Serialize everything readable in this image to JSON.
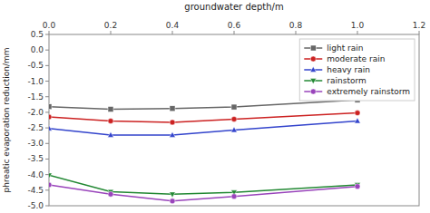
{
  "chart_data": {
    "type": "line",
    "x": [
      0.0,
      0.2,
      0.4,
      0.6,
      1.0
    ],
    "series": [
      {
        "name": "light rain",
        "color": "#666666",
        "marker": "square",
        "values": [
          -1.82,
          -1.9,
          -1.88,
          -1.83,
          -1.6
        ]
      },
      {
        "name": "moderate rain",
        "color": "#cc2222",
        "marker": "circle",
        "values": [
          -2.15,
          -2.28,
          -2.32,
          -2.22,
          -2.02
        ]
      },
      {
        "name": "heavy rain",
        "color": "#3344cc",
        "marker": "triangle-up",
        "values": [
          -2.52,
          -2.73,
          -2.73,
          -2.57,
          -2.28
        ]
      },
      {
        "name": "rainstorm",
        "color": "#228833",
        "marker": "triangle-down",
        "values": [
          -4.02,
          -4.55,
          -4.63,
          -4.57,
          -4.33
        ]
      },
      {
        "name": "extremely rainstorm",
        "color": "#9944bb",
        "marker": "circle",
        "values": [
          -4.33,
          -4.63,
          -4.85,
          -4.7,
          -4.38
        ]
      }
    ],
    "x_label": "groundwater depth/m",
    "y_label": "phreatic evaporation reduction/mm",
    "xlim": [
      0.0,
      1.2
    ],
    "ylim": [
      -5.0,
      0.5
    ],
    "xticks": [
      {
        "value": 0,
        "label": "0.0"
      },
      0.2,
      0.4,
      0.6,
      0.8,
      {
        "value": 1,
        "label": "1.0"
      },
      1.2
    ],
    "yticks": [
      0.5,
      {
        "value": 0,
        "label": "0.0"
      },
      -0.5,
      {
        "value": -1,
        "label": "-1.0"
      },
      -1.5,
      {
        "value": -2,
        "label": "-2.0"
      },
      -2.5,
      {
        "value": -3,
        "label": "-3.0"
      },
      -3.5,
      {
        "value": -4,
        "label": "-4.0"
      },
      -4.5,
      {
        "value": -5,
        "label": "-5.0"
      }
    ],
    "grid": false,
    "legend": "upper right"
  }
}
